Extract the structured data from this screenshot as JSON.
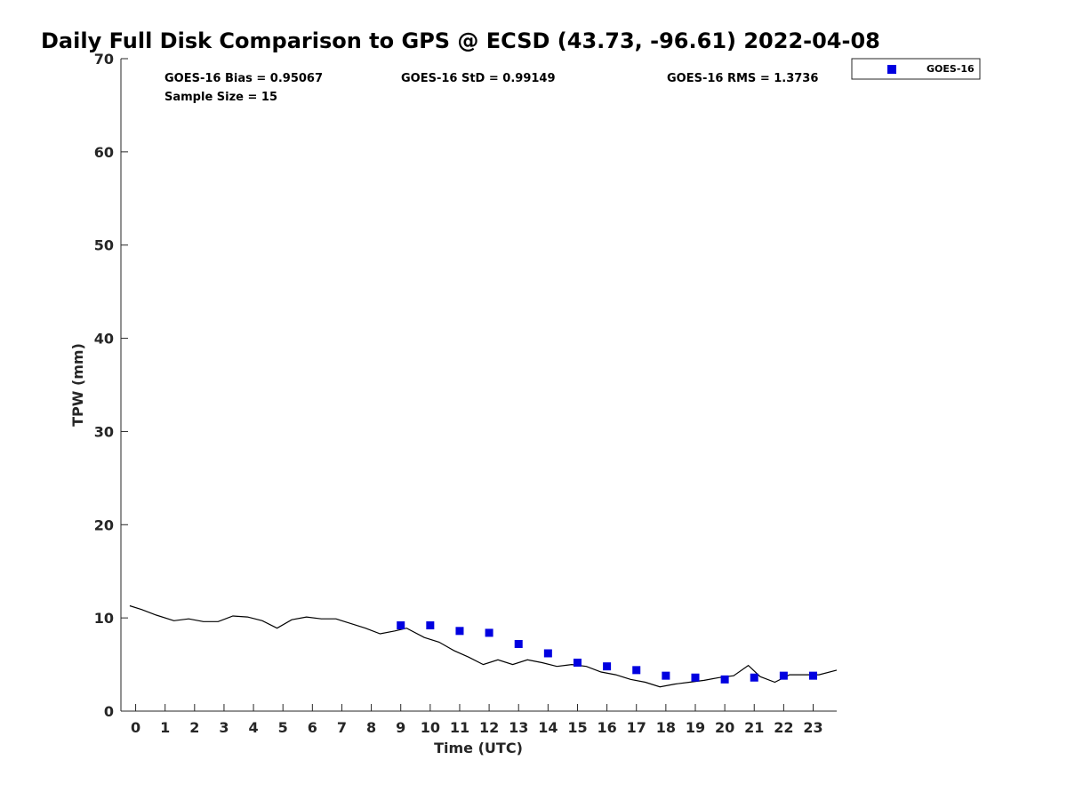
{
  "chart_data": {
    "type": "scatter",
    "title": "Daily Full Disk Comparison to GPS @ ECSD (43.73, -96.61) 2022-04-08",
    "xlabel": "Time (UTC)",
    "ylabel": "TPW (mm)",
    "xlim": [
      -0.5,
      23.8
    ],
    "ylim": [
      0,
      70
    ],
    "x_ticks": [
      0,
      1,
      2,
      3,
      4,
      5,
      6,
      7,
      8,
      9,
      10,
      11,
      12,
      13,
      14,
      15,
      16,
      17,
      18,
      19,
      20,
      21,
      22,
      23
    ],
    "y_ticks": [
      0,
      10,
      20,
      30,
      40,
      50,
      60,
      70
    ],
    "grid": false,
    "legend_position": "top-right",
    "stats": {
      "bias": "GOES-16 Bias = 0.95067",
      "std": "GOES-16 StD = 0.99149",
      "rms": "GOES-16 RMS = 1.3736",
      "sample_size": "Sample Size = 15"
    },
    "series": [
      {
        "name": "GOES-16",
        "kind": "scatter",
        "marker": "square",
        "color": "#0000e0",
        "points": [
          [
            9,
            9.2
          ],
          [
            10,
            9.2
          ],
          [
            11,
            8.6
          ],
          [
            12,
            8.4
          ],
          [
            13,
            7.2
          ],
          [
            14,
            6.2
          ],
          [
            15,
            5.2
          ],
          [
            16,
            4.8
          ],
          [
            17,
            4.4
          ],
          [
            18,
            3.8
          ],
          [
            19,
            3.6
          ],
          [
            20,
            3.4
          ],
          [
            21,
            3.6
          ],
          [
            22,
            3.8
          ],
          [
            23,
            3.8
          ]
        ]
      },
      {
        "kind": "line",
        "color": "#000000",
        "points": [
          [
            -0.2,
            11.3
          ],
          [
            0.2,
            10.9
          ],
          [
            0.7,
            10.3
          ],
          [
            1.3,
            9.7
          ],
          [
            1.8,
            9.9
          ],
          [
            2.3,
            9.6
          ],
          [
            2.8,
            9.6
          ],
          [
            3.3,
            10.2
          ],
          [
            3.8,
            10.1
          ],
          [
            4.3,
            9.7
          ],
          [
            4.8,
            8.9
          ],
          [
            5.3,
            9.8
          ],
          [
            5.8,
            10.1
          ],
          [
            6.3,
            9.9
          ],
          [
            6.8,
            9.9
          ],
          [
            7.3,
            9.4
          ],
          [
            7.8,
            8.9
          ],
          [
            8.3,
            8.3
          ],
          [
            8.8,
            8.6
          ],
          [
            9.2,
            8.9
          ],
          [
            9.8,
            7.9
          ],
          [
            10.3,
            7.4
          ],
          [
            10.8,
            6.5
          ],
          [
            11.3,
            5.8
          ],
          [
            11.8,
            5.0
          ],
          [
            12.3,
            5.5
          ],
          [
            12.8,
            5.0
          ],
          [
            13.3,
            5.5
          ],
          [
            13.8,
            5.2
          ],
          [
            14.3,
            4.8
          ],
          [
            14.8,
            5.0
          ],
          [
            15.3,
            4.8
          ],
          [
            15.8,
            4.2
          ],
          [
            16.3,
            3.9
          ],
          [
            16.8,
            3.4
          ],
          [
            17.3,
            3.1
          ],
          [
            17.8,
            2.6
          ],
          [
            18.3,
            2.9
          ],
          [
            18.8,
            3.1
          ],
          [
            19.3,
            3.3
          ],
          [
            19.8,
            3.6
          ],
          [
            20.3,
            3.8
          ],
          [
            20.8,
            4.9
          ],
          [
            21.2,
            3.7
          ],
          [
            21.7,
            3.1
          ],
          [
            22.2,
            3.9
          ],
          [
            22.7,
            3.9
          ],
          [
            23.2,
            3.9
          ],
          [
            23.8,
            4.4
          ]
        ]
      }
    ]
  }
}
